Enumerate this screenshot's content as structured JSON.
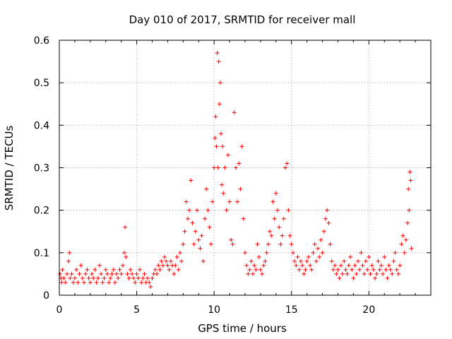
{
  "chart_data": {
    "type": "scatter",
    "title": "Day 010 of 2017, SRMTID for receiver mall",
    "xlabel": "GPS time / hours",
    "ylabel": "SRMTID / TECUs",
    "xlim": [
      0,
      24
    ],
    "ylim": [
      0,
      0.6
    ],
    "xticks": [
      0,
      5,
      10,
      15,
      20
    ],
    "xtick_labels": [
      "0",
      "5",
      "10",
      "15",
      "20"
    ],
    "yticks": [
      0,
      0.1,
      0.2,
      0.3,
      0.4,
      0.5,
      0.6
    ],
    "ytick_labels": [
      "0",
      "0.1",
      "0.2",
      "0.3",
      "0.4",
      "0.5",
      "0.6"
    ],
    "grid": true,
    "marker": "+",
    "color": "#ff0000",
    "series": [
      {
        "name": "SRMTID",
        "x": [
          0.05,
          0.1,
          0.15,
          0.2,
          0.3,
          0.4,
          0.5,
          0.6,
          0.65,
          0.7,
          0.8,
          0.9,
          1.0,
          1.1,
          1.2,
          1.3,
          1.4,
          1.5,
          1.6,
          1.7,
          1.8,
          1.9,
          2.0,
          2.1,
          2.2,
          2.3,
          2.4,
          2.5,
          2.6,
          2.7,
          2.8,
          2.9,
          3.0,
          3.1,
          3.2,
          3.3,
          3.4,
          3.5,
          3.6,
          3.7,
          3.8,
          3.9,
          4.0,
          4.1,
          4.2,
          4.25,
          4.3,
          4.4,
          4.5,
          4.6,
          4.7,
          4.8,
          4.9,
          5.0,
          5.1,
          5.2,
          5.3,
          5.4,
          5.5,
          5.6,
          5.7,
          5.8,
          5.9,
          6.0,
          6.1,
          6.2,
          6.3,
          6.4,
          6.5,
          6.6,
          6.7,
          6.8,
          6.9,
          7.0,
          7.1,
          7.2,
          7.3,
          7.4,
          7.5,
          7.6,
          7.7,
          7.8,
          7.9,
          8.0,
          8.1,
          8.2,
          8.3,
          8.4,
          8.5,
          8.6,
          8.7,
          8.8,
          8.9,
          9.0,
          9.1,
          9.2,
          9.3,
          9.4,
          9.5,
          9.6,
          9.7,
          9.8,
          9.9,
          10.0,
          10.05,
          10.1,
          10.15,
          10.2,
          10.25,
          10.3,
          10.35,
          10.4,
          10.45,
          10.5,
          10.55,
          10.6,
          10.7,
          10.8,
          10.9,
          11.0,
          11.1,
          11.2,
          11.3,
          11.4,
          11.5,
          11.6,
          11.7,
          11.8,
          11.9,
          12.0,
          12.1,
          12.2,
          12.3,
          12.4,
          12.5,
          12.6,
          12.7,
          12.8,
          12.9,
          13.0,
          13.1,
          13.2,
          13.3,
          13.4,
          13.5,
          13.6,
          13.7,
          13.8,
          13.9,
          14.0,
          14.1,
          14.2,
          14.3,
          14.4,
          14.5,
          14.6,
          14.7,
          14.8,
          14.9,
          15.0,
          15.1,
          15.2,
          15.3,
          15.4,
          15.5,
          15.6,
          15.7,
          15.8,
          15.9,
          16.0,
          16.1,
          16.2,
          16.3,
          16.4,
          16.5,
          16.6,
          16.7,
          16.8,
          16.9,
          17.0,
          17.1,
          17.2,
          17.3,
          17.4,
          17.5,
          17.6,
          17.7,
          17.8,
          17.9,
          18.0,
          18.1,
          18.2,
          18.3,
          18.4,
          18.5,
          18.6,
          18.7,
          18.8,
          18.9,
          19.0,
          19.1,
          19.2,
          19.3,
          19.4,
          19.5,
          19.6,
          19.7,
          19.8,
          19.9,
          20.0,
          20.1,
          20.2,
          20.3,
          20.4,
          20.5,
          20.6,
          20.7,
          20.8,
          20.9,
          21.0,
          21.1,
          21.2,
          21.3,
          21.4,
          21.5,
          21.6,
          21.7,
          21.8,
          21.9,
          22.0,
          22.1,
          22.2,
          22.3,
          22.4,
          22.5,
          22.55,
          22.6,
          22.65,
          22.7,
          22.75
        ],
        "y": [
          0.05,
          0.04,
          0.03,
          0.06,
          0.04,
          0.03,
          0.05,
          0.08,
          0.1,
          0.04,
          0.05,
          0.03,
          0.04,
          0.06,
          0.03,
          0.05,
          0.07,
          0.04,
          0.03,
          0.05,
          0.06,
          0.04,
          0.03,
          0.05,
          0.04,
          0.06,
          0.03,
          0.04,
          0.07,
          0.05,
          0.03,
          0.04,
          0.06,
          0.05,
          0.03,
          0.04,
          0.05,
          0.06,
          0.03,
          0.05,
          0.04,
          0.06,
          0.05,
          0.07,
          0.1,
          0.16,
          0.09,
          0.05,
          0.04,
          0.06,
          0.05,
          0.04,
          0.03,
          0.05,
          0.04,
          0.06,
          0.03,
          0.04,
          0.05,
          0.03,
          0.04,
          0.03,
          0.02,
          0.04,
          0.05,
          0.06,
          0.05,
          0.07,
          0.06,
          0.08,
          0.07,
          0.09,
          0.08,
          0.07,
          0.06,
          0.08,
          0.07,
          0.05,
          0.07,
          0.09,
          0.06,
          0.1,
          0.08,
          0.12,
          0.15,
          0.22,
          0.18,
          0.2,
          0.27,
          0.17,
          0.12,
          0.15,
          0.2,
          0.13,
          0.11,
          0.14,
          0.08,
          0.18,
          0.25,
          0.2,
          0.16,
          0.12,
          0.22,
          0.3,
          0.37,
          0.42,
          0.35,
          0.57,
          0.3,
          0.55,
          0.45,
          0.5,
          0.38,
          0.26,
          0.35,
          0.24,
          0.3,
          0.2,
          0.33,
          0.22,
          0.13,
          0.12,
          0.43,
          0.3,
          0.22,
          0.31,
          0.25,
          0.35,
          0.18,
          0.1,
          0.07,
          0.05,
          0.06,
          0.08,
          0.05,
          0.07,
          0.06,
          0.12,
          0.09,
          0.06,
          0.05,
          0.07,
          0.08,
          0.1,
          0.12,
          0.15,
          0.14,
          0.22,
          0.18,
          0.24,
          0.2,
          0.16,
          0.12,
          0.14,
          0.18,
          0.3,
          0.31,
          0.2,
          0.14,
          0.12,
          0.1,
          0.08,
          0.07,
          0.09,
          0.06,
          0.08,
          0.07,
          0.05,
          0.06,
          0.08,
          0.09,
          0.07,
          0.06,
          0.1,
          0.12,
          0.08,
          0.11,
          0.09,
          0.13,
          0.1,
          0.15,
          0.18,
          0.2,
          0.17,
          0.12,
          0.08,
          0.06,
          0.07,
          0.05,
          0.06,
          0.04,
          0.07,
          0.05,
          0.08,
          0.06,
          0.05,
          0.07,
          0.09,
          0.06,
          0.04,
          0.07,
          0.05,
          0.08,
          0.06,
          0.1,
          0.07,
          0.05,
          0.08,
          0.06,
          0.09,
          0.05,
          0.07,
          0.06,
          0.04,
          0.05,
          0.08,
          0.06,
          0.07,
          0.05,
          0.09,
          0.06,
          0.04,
          0.07,
          0.06,
          0.05,
          0.08,
          0.1,
          0.06,
          0.05,
          0.07,
          0.12,
          0.14,
          0.1,
          0.13,
          0.17,
          0.25,
          0.2,
          0.29,
          0.27,
          0.11
        ]
      }
    ]
  }
}
